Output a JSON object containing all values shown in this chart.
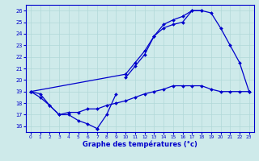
{
  "xlabel": "Graphe des températures (°c)",
  "xlim": [
    -0.5,
    23.5
  ],
  "ylim": [
    15.5,
    26.5
  ],
  "xticks": [
    0,
    1,
    2,
    3,
    4,
    5,
    6,
    7,
    8,
    9,
    10,
    11,
    12,
    13,
    14,
    15,
    16,
    17,
    18,
    19,
    20,
    21,
    22,
    23
  ],
  "yticks": [
    16,
    17,
    18,
    19,
    20,
    21,
    22,
    23,
    24,
    25,
    26
  ],
  "bg_color": "#ceeaea",
  "line_color": "#0000cc",
  "grid_color": "#b0d8d8",
  "curves": [
    {
      "x": [
        0,
        1,
        2,
        3,
        4,
        5,
        6,
        7
      ],
      "y": [
        19.0,
        18.8,
        17.8,
        17.0,
        17.0,
        16.5,
        16.2,
        15.8
      ]
    },
    {
      "x": [
        7,
        8,
        9
      ],
      "y": [
        15.8,
        17.0,
        18.8
      ]
    },
    {
      "x": [
        0,
        1,
        2,
        3,
        4,
        5,
        6,
        7,
        8,
        9,
        10,
        11,
        12,
        13,
        14,
        15,
        16,
        17,
        18,
        19,
        20,
        21,
        22,
        23
      ],
      "y": [
        19.0,
        18.5,
        17.8,
        17.0,
        17.2,
        17.2,
        17.5,
        17.5,
        17.8,
        18.0,
        18.2,
        18.5,
        18.8,
        19.0,
        19.2,
        19.5,
        19.5,
        19.5,
        19.5,
        19.2,
        19.0,
        19.0,
        19.0,
        19.0
      ]
    },
    {
      "x": [
        0,
        10,
        11,
        12,
        13,
        14,
        15,
        16,
        17,
        18,
        19,
        20,
        21,
        22,
        23
      ],
      "y": [
        19.0,
        20.5,
        21.5,
        22.5,
        23.8,
        24.8,
        25.2,
        25.5,
        26.0,
        26.0,
        25.8,
        24.5,
        23.0,
        21.5,
        19.0
      ]
    },
    {
      "x": [
        10,
        11,
        12,
        13,
        14,
        15,
        16,
        17,
        18
      ],
      "y": [
        20.2,
        21.2,
        22.2,
        23.8,
        24.5,
        24.8,
        25.0,
        26.0,
        26.0
      ]
    }
  ]
}
